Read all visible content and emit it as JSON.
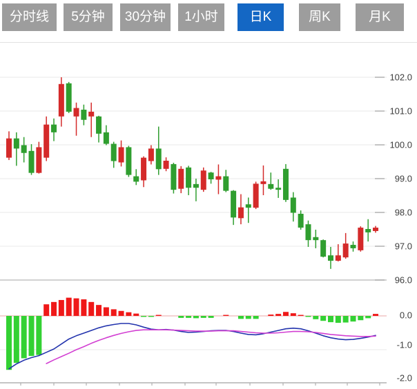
{
  "tabs": [
    {
      "label": "分时线",
      "name": "time-line",
      "active": false
    },
    {
      "label": "5分钟",
      "name": "5min",
      "active": false
    },
    {
      "label": "30分钟",
      "name": "30min",
      "active": false
    },
    {
      "label": "1小时",
      "name": "1hour",
      "active": false
    },
    {
      "label": "日K",
      "name": "daily-k",
      "active": true
    },
    {
      "label": "周K",
      "name": "weekly-k",
      "active": false
    },
    {
      "label": "月K",
      "name": "monthly-k",
      "active": false
    }
  ],
  "colors": {
    "tab_bg": "#9d9d9d",
    "tab_active_bg": "#1467c4",
    "tab_text": "#ffffff",
    "candle_up": "#d42a2a",
    "candle_down": "#2f9e2f",
    "hist_up": "#ef1818",
    "hist_down": "#33d133",
    "dif_line": "#2233ad",
    "dea_line": "#d23ed2",
    "grid": "#e8e8e8",
    "grid_dark": "#c2c2c2",
    "axis_bottom": "#b0b0b0",
    "zero_line": "#eba5a5",
    "label_text": "#3c3c3c",
    "top_border": "#e2e2e2"
  },
  "chart_data": {
    "type": "candlestick",
    "title": "",
    "price_axis": {
      "labels": [
        "102.0",
        "101.0",
        "100.0",
        "99.0",
        "98.0",
        "97.0",
        "96.0"
      ],
      "ticks": [
        102,
        101,
        100,
        99,
        98,
        97,
        96
      ],
      "range": [
        95.9,
        103.0
      ]
    },
    "macd_axis": {
      "labels": [
        "0.0",
        "-1.0",
        "-2.0"
      ],
      "ticks": [
        0,
        -1,
        -2
      ],
      "range": [
        -2.1,
        0.6
      ]
    },
    "legend": [],
    "grid": true,
    "candles_ohlc_dir": [
      [
        99.62,
        100.4,
        99.55,
        100.19,
        1
      ],
      [
        100.19,
        100.37,
        99.38,
        99.89,
        -1
      ],
      [
        99.99,
        100.23,
        99.48,
        99.76,
        -1
      ],
      [
        99.82,
        100.02,
        99.11,
        99.17,
        -1
      ],
      [
        99.17,
        100.09,
        99.15,
        99.93,
        1
      ],
      [
        99.62,
        100.84,
        99.52,
        100.6,
        1
      ],
      [
        100.6,
        100.78,
        100.11,
        100.37,
        -1
      ],
      [
        100.84,
        102.0,
        100.54,
        101.8,
        1
      ],
      [
        101.82,
        101.86,
        100.94,
        100.98,
        -1
      ],
      [
        100.84,
        101.25,
        100.27,
        101.09,
        1
      ],
      [
        101.04,
        101.19,
        100.58,
        100.74,
        -1
      ],
      [
        100.84,
        101.25,
        100.23,
        100.98,
        1
      ],
      [
        100.84,
        100.86,
        100.07,
        100.33,
        -1
      ],
      [
        100.37,
        100.58,
        99.99,
        100.03,
        -1
      ],
      [
        100.03,
        100.09,
        99.32,
        99.52,
        -1
      ],
      [
        99.48,
        100.13,
        99.36,
        99.93,
        1
      ],
      [
        99.93,
        99.97,
        99.05,
        99.11,
        -1
      ],
      [
        99.07,
        99.28,
        98.81,
        98.91,
        -1
      ],
      [
        98.95,
        99.66,
        98.75,
        99.62,
        1
      ],
      [
        99.52,
        99.99,
        99.42,
        99.89,
        1
      ],
      [
        99.89,
        100.54,
        99.11,
        99.28,
        -1
      ],
      [
        99.29,
        99.63,
        99.22,
        99.53,
        1
      ],
      [
        99.43,
        99.47,
        98.56,
        98.67,
        -1
      ],
      [
        98.7,
        99.37,
        98.57,
        99.29,
        1
      ],
      [
        99.33,
        99.38,
        98.51,
        98.73,
        -1
      ],
      [
        98.84,
        99.0,
        98.33,
        98.73,
        -1
      ],
      [
        98.67,
        99.33,
        98.61,
        99.24,
        1
      ],
      [
        99.18,
        99.2,
        98.85,
        98.98,
        -1
      ],
      [
        98.97,
        99.42,
        98.54,
        99.07,
        1
      ],
      [
        99.07,
        99.26,
        98.6,
        98.64,
        -1
      ],
      [
        98.64,
        98.66,
        97.63,
        97.85,
        -1
      ],
      [
        97.83,
        98.54,
        97.65,
        98.15,
        1
      ],
      [
        98.24,
        98.44,
        97.69,
        98.14,
        -1
      ],
      [
        98.14,
        98.91,
        98.1,
        98.85,
        1
      ],
      [
        98.84,
        99.39,
        98.51,
        98.92,
        1
      ],
      [
        98.84,
        99.18,
        98.67,
        98.7,
        -1
      ],
      [
        98.73,
        98.98,
        98.43,
        98.67,
        -1
      ],
      [
        99.29,
        99.43,
        98.31,
        98.37,
        -1
      ],
      [
        98.44,
        98.6,
        97.73,
        97.99,
        -1
      ],
      [
        97.96,
        98.06,
        97.49,
        97.55,
        -1
      ],
      [
        97.65,
        97.76,
        96.98,
        97.18,
        -1
      ],
      [
        97.27,
        97.49,
        96.94,
        97.18,
        -1
      ],
      [
        97.18,
        97.2,
        96.67,
        96.69,
        -1
      ],
      [
        96.73,
        96.98,
        96.33,
        96.57,
        -1
      ],
      [
        96.57,
        97.06,
        96.55,
        96.73,
        1
      ],
      [
        96.67,
        97.39,
        96.63,
        97.08,
        1
      ],
      [
        97.04,
        97.14,
        96.84,
        96.94,
        -1
      ],
      [
        96.88,
        97.59,
        96.84,
        97.55,
        1
      ],
      [
        97.51,
        97.8,
        97.14,
        97.41,
        -1
      ],
      [
        97.45,
        97.6,
        97.4,
        97.55,
        1
      ]
    ],
    "macd": {
      "histogram": [
        -1.63,
        -1.42,
        -1.28,
        -1.21,
        -1.18,
        0.35,
        0.42,
        0.48,
        0.55,
        0.53,
        0.5,
        0.42,
        0.33,
        0.26,
        0.2,
        0.15,
        0.11,
        0.07,
        -0.03,
        -0.03,
        0.03,
        0,
        0,
        -0.06,
        -0.06,
        -0.07,
        -0.06,
        -0.06,
        0,
        0.03,
        0,
        -0.09,
        -0.09,
        -0.09,
        0,
        0.04,
        0.06,
        0.12,
        0.08,
        0.03,
        -0.03,
        -0.1,
        -0.15,
        -0.19,
        -0.21,
        -0.2,
        -0.17,
        -0.13,
        -0.07,
        0.06
      ],
      "dif": [
        -1.6,
        -1.45,
        -1.34,
        -1.26,
        -1.2,
        -1.1,
        -1.0,
        -0.85,
        -0.7,
        -0.6,
        -0.52,
        -0.44,
        -0.36,
        -0.3,
        -0.26,
        -0.23,
        -0.23,
        -0.27,
        -0.34,
        -0.4,
        -0.42,
        -0.41,
        -0.43,
        -0.47,
        -0.5,
        -0.49,
        -0.47,
        -0.45,
        -0.44,
        -0.44,
        -0.47,
        -0.52,
        -0.56,
        -0.57,
        -0.54,
        -0.49,
        -0.44,
        -0.39,
        -0.37,
        -0.39,
        -0.45,
        -0.52,
        -0.6,
        -0.66,
        -0.7,
        -0.72,
        -0.71,
        -0.68,
        -0.64,
        -0.59
      ],
      "dea": [
        null,
        null,
        null,
        null,
        null,
        -1.44,
        -1.33,
        -1.23,
        -1.13,
        -1.02,
        -0.93,
        -0.83,
        -0.74,
        -0.66,
        -0.59,
        -0.53,
        -0.48,
        -0.44,
        -0.42,
        -0.42,
        -0.42,
        -0.42,
        -0.43,
        -0.44,
        -0.45,
        -0.46,
        -0.46,
        -0.46,
        -0.45,
        -0.45,
        -0.45,
        -0.47,
        -0.49,
        -0.51,
        -0.52,
        -0.52,
        -0.51,
        -0.49,
        -0.47,
        -0.47,
        -0.48,
        -0.5,
        -0.53,
        -0.56,
        -0.58,
        -0.6,
        -0.61,
        -0.62,
        -0.62,
        -0.61
      ]
    }
  }
}
